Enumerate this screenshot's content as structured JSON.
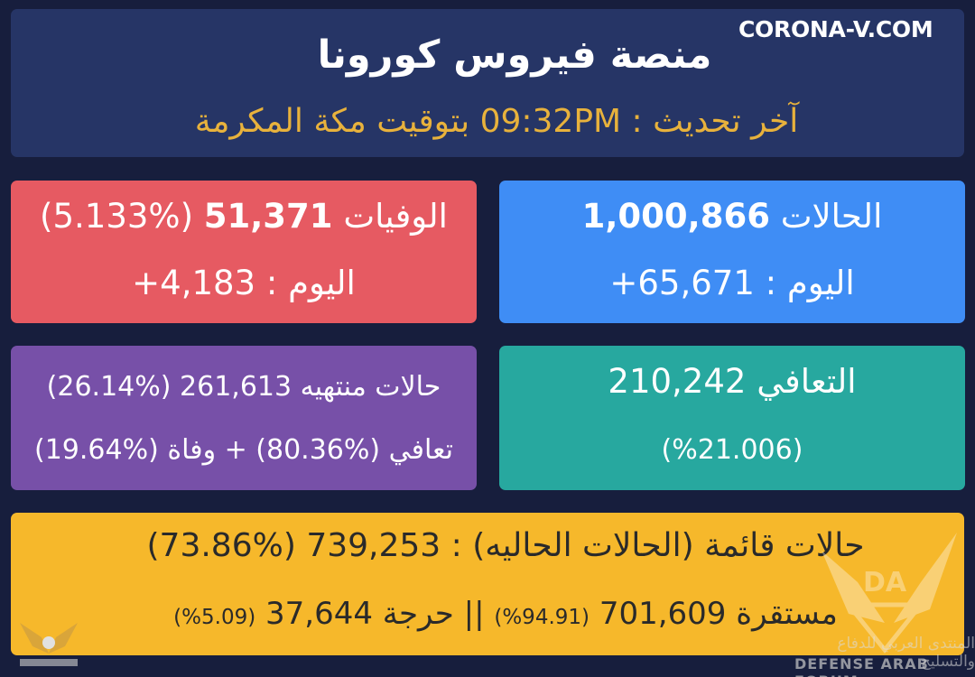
{
  "header": {
    "site_url": "CORONA-V.COM",
    "title": "منصة فيروس كورونا",
    "update_line": "آخر تحديث : 09:32PM بتوقيت مكة المكرمة"
  },
  "cases": {
    "label": "الحالات",
    "value": "1,000,866",
    "today_label": "اليوم :",
    "today_value": "+65,671"
  },
  "deaths": {
    "label": "الوفيات",
    "value": "51,371",
    "percent": "(5.133%)",
    "today_label": "اليوم :",
    "today_value": "+4,183"
  },
  "recovered": {
    "label": "التعافي",
    "value": "210,242",
    "percent": "(%21.006)"
  },
  "closed": {
    "label": "حالات منتهيه",
    "value": "261,613",
    "percent": "(26.14%)",
    "recovery_label": "تعافي",
    "recovery_percent": "(80.36%)",
    "plus": "+",
    "death_label": "وفاة",
    "death_percent": "(19.64%)"
  },
  "active": {
    "label": "حالات قائمة (الحالات الحاليه) :",
    "value": "739,253",
    "percent": "(73.86%)",
    "stable_label": "مستقرة",
    "stable_value": "701,609",
    "stable_percent": "(%94.91)",
    "separator": "||",
    "critical_label": "حرجة",
    "critical_value": "37,644",
    "critical_percent": "(%5.09)"
  },
  "watermark": {
    "forum_name_en": "DEFENSE ARAB FORUM",
    "forum_name_ar": "المنتدى العربي للدفاع والتسليح",
    "logo_letters": "DA"
  },
  "colors": {
    "background": "#171e3d",
    "header": "#263566",
    "accent": "#e8b23c",
    "cases": "#3f8df5",
    "deaths": "#e65a62",
    "recovered": "#27a89f",
    "closed": "#7750a8",
    "active": "#f6b82b"
  }
}
